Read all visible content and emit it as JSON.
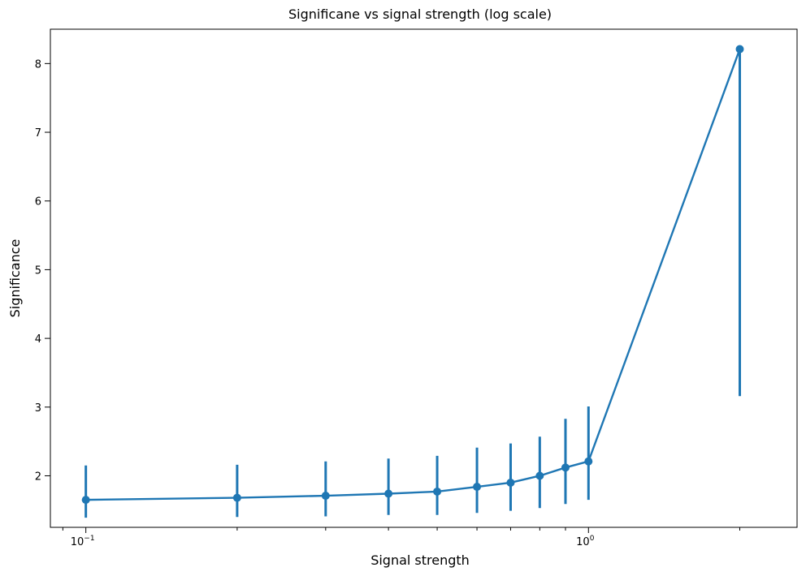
{
  "chart_data": {
    "type": "line",
    "title": "Significane vs signal strength (log scale)",
    "xlabel": "Signal strength",
    "ylabel": "Significance",
    "xscale": "log",
    "xlim": [
      0.085,
      2.6
    ],
    "ylim": [
      1.25,
      8.5
    ],
    "x_ticks": [
      0.1,
      1.0
    ],
    "x_tick_labels": [
      {
        "base": "10",
        "exp": "−1"
      },
      {
        "base": "10",
        "exp": "0"
      }
    ],
    "x_minor_ticks": [
      0.09,
      0.2,
      0.3,
      0.4,
      0.5,
      0.6,
      0.7,
      0.8,
      0.9,
      2.0
    ],
    "y_ticks": [
      2,
      3,
      4,
      5,
      6,
      7,
      8
    ],
    "y_tick_labels": [
      "2",
      "3",
      "4",
      "5",
      "6",
      "7",
      "8"
    ],
    "grid": false,
    "color": "#1f77b4",
    "series": [
      {
        "x": [
          0.1,
          0.2,
          0.3,
          0.4,
          0.5,
          0.6,
          0.7,
          0.8,
          0.9,
          1.0,
          2.0
        ],
        "y": [
          1.65,
          1.68,
          1.71,
          1.74,
          1.77,
          1.84,
          1.9,
          2.0,
          2.12,
          2.21,
          8.21
        ],
        "yerr_low": [
          1.39,
          1.4,
          1.41,
          1.43,
          1.43,
          1.46,
          1.49,
          1.53,
          1.59,
          1.65,
          3.16
        ],
        "yerr_high": [
          2.15,
          2.16,
          2.21,
          2.25,
          2.29,
          2.41,
          2.47,
          2.57,
          2.83,
          3.01,
          8.21
        ]
      }
    ]
  }
}
